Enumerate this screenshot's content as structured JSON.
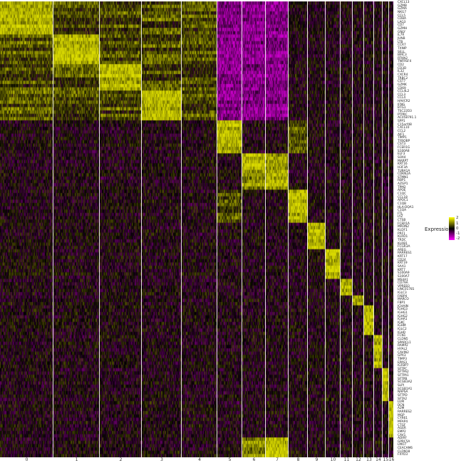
{
  "chart_data": {
    "type": "heatmap",
    "title": "",
    "xlabel": "",
    "ylabel": "",
    "clusters": [
      "0",
      "1",
      "2",
      "3",
      "4",
      "5",
      "6",
      "7",
      "8",
      "9",
      "10",
      "11",
      "12",
      "13",
      "14",
      "15",
      "16"
    ],
    "genes": [
      "CXCL13",
      "GZMB",
      "GZMA",
      "NKG7",
      "CCL5",
      "CD8A",
      "LAG3",
      "CD7",
      "GZMH",
      "GNLY",
      "IL7R",
      "JUNB",
      "LTB",
      "CCR7",
      "TXNIP",
      "SELL",
      "BIRC3",
      "RTKN2",
      "TNFRSF4",
      "CD2",
      "CD3D",
      "IL32",
      "CXCR4",
      "TRBC2",
      "CST7",
      "GZMK",
      "CD69",
      "CCL4L2",
      "CCL3",
      "CCL4",
      "HAVCR2",
      "IFNG",
      "BTG1",
      "TSC22D3",
      "PTPRC",
      "AC058791.1",
      "SPP1",
      "C15orf48",
      "CXCL10",
      "CCL2",
      "AIF1",
      "TIMP1",
      "TYROBP",
      "CST3",
      "FCER1G",
      "S100A8",
      "ELF3",
      "SOX4",
      "MARPT",
      "KRT16",
      "H3F3A",
      "TUBA1A",
      "CDKN2A",
      "STMN1",
      "RBP1",
      "AZGP1",
      "TPM2",
      "APOE",
      "C1QC",
      "CCL18",
      "APOC1",
      "C1QB",
      "HLA-DQA1",
      "C1QA",
      "FTL",
      "LYZ",
      "CTSB",
      "FCER1A",
      "MRON2",
      "KLDF1",
      "PRF1",
      "KLRD1",
      "TRDC",
      "KLRB1",
      "FCGR3A",
      "AREG",
      "RARRES1",
      "KRT17",
      "CD24",
      "KRT19",
      "SAA1",
      "KRT7",
      "S100A9",
      "S100A7",
      "MS4A1",
      "CD79A",
      "VPREB3",
      "LINC01781",
      "IGLC3",
      "FABP4",
      "MARCO",
      "FBP1",
      "JCHAIN",
      "IGHG3",
      "IGHG1",
      "IGHG2",
      "IGHA1",
      "IGKC",
      "IGHM",
      "IGLC2",
      "IGHD",
      "FCN1",
      "CLDN5",
      "SPARCL1",
      "RAMP2",
      "HYAL2",
      "CAVIN2",
      "GPX3",
      "TIMP3",
      "EPAS1",
      "IGFBP7",
      "SFTPC",
      "SFTPA2",
      "SFTPA1",
      "SFTPB",
      "SCGB3A2",
      "SLPI",
      "SCGB1A1",
      "NAPSA",
      "SFTPD",
      "SFTA2",
      "LUM",
      "DCN",
      "A2M",
      "RARRES2",
      "MGP",
      "CYR61",
      "MFAP4",
      "CTGF",
      "AGER",
      "EMP2",
      "CAV1",
      "ADIRF",
      "GPRC5A",
      "LMO7",
      "CEACAM6",
      "CLDN18",
      "FXYD3"
    ],
    "marker_cluster": [
      0,
      0,
      0,
      0,
      0,
      0,
      0,
      0,
      0,
      0,
      1,
      1,
      1,
      1,
      1,
      1,
      1,
      1,
      1,
      2,
      2,
      2,
      2,
      2,
      2,
      2,
      2,
      3,
      3,
      3,
      3,
      3,
      3,
      3,
      3,
      3,
      5,
      5,
      5,
      5,
      5,
      5,
      5,
      5,
      5,
      5,
      6,
      6,
      6,
      6,
      6,
      7,
      7,
      7,
      7,
      7,
      7,
      8,
      8,
      8,
      8,
      8,
      8,
      8,
      8,
      8,
      8,
      9,
      9,
      9,
      9,
      9,
      9,
      9,
      9,
      10,
      10,
      10,
      10,
      10,
      10,
      10,
      10,
      10,
      11,
      11,
      11,
      11,
      11,
      12,
      12,
      12,
      13,
      13,
      13,
      13,
      13,
      13,
      13,
      13,
      13,
      14,
      14,
      14,
      14,
      14,
      14,
      14,
      14,
      14,
      14,
      15,
      15,
      15,
      15,
      15,
      15,
      15,
      15,
      15,
      15,
      16,
      16,
      16,
      16,
      16,
      16,
      16,
      16,
      16,
      16,
      16,
      7,
      7,
      7,
      7,
      7,
      7
    ],
    "legend": {
      "title": "Expression",
      "ticks": [
        "2",
        "1",
        "0",
        "-1",
        "-2"
      ]
    },
    "color_scale": {
      "low": "#FF00FF",
      "mid": "#000000",
      "high": "#FFFF00"
    },
    "value_range": [
      -2,
      2
    ],
    "grid": false,
    "legend_placement": "right"
  }
}
